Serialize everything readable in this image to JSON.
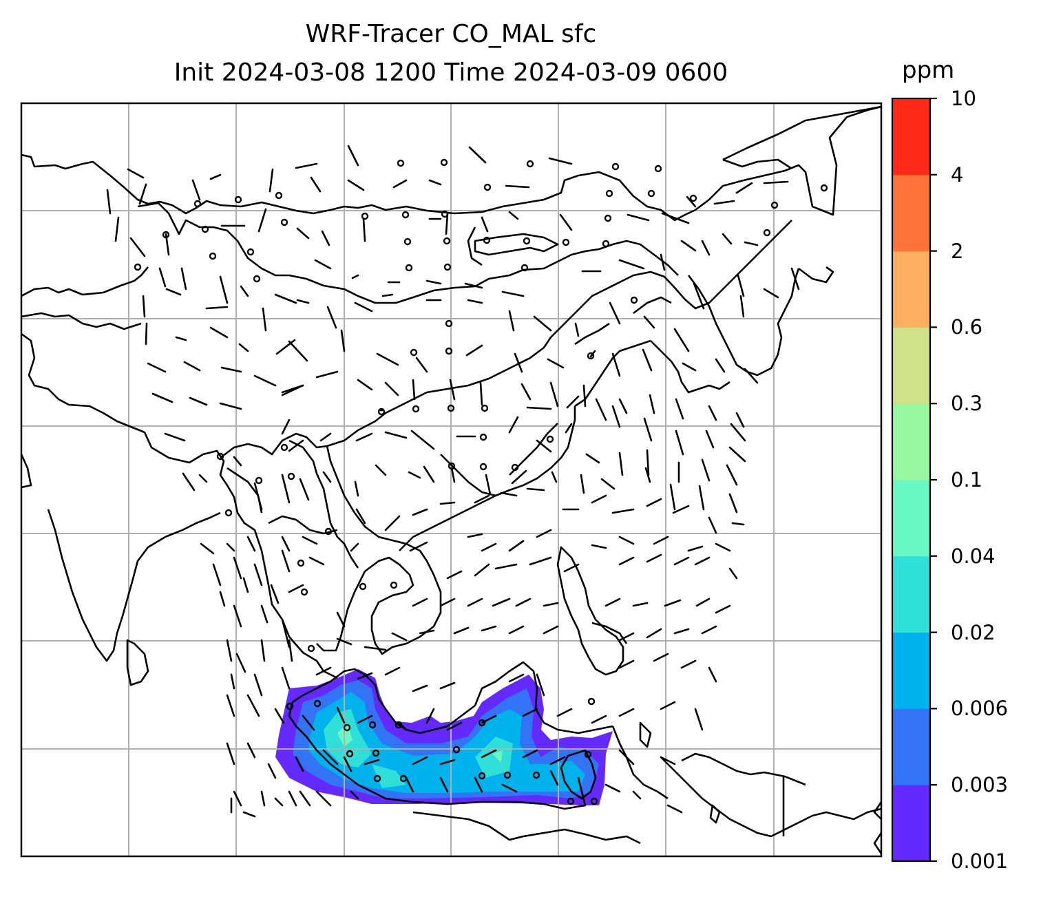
{
  "title": {
    "line1": "WRF-Tracer CO_MAL sfc",
    "line2": "Init 2024-03-08 1200 Time 2024-03-09 0600"
  },
  "map": {
    "field": "CO_MAL tracer concentration (surface)",
    "wind_barbs": true,
    "gridlines": true,
    "grid_color": "#b0b0b0",
    "coastline_color": "#000000",
    "tracer_region": "Malaysia / Borneo / Sumatra"
  },
  "colorbar": {
    "unit": "ppm",
    "ticks": [
      "0.001",
      "0.003",
      "0.006",
      "0.02",
      "0.04",
      "0.1",
      "0.3",
      "0.6",
      "2",
      "4",
      "10"
    ],
    "colors": [
      "#6429ff",
      "#3274f5",
      "#00b2ec",
      "#31dfd9",
      "#67f8c3",
      "#98f7a0",
      "#cfe189",
      "#fcae61",
      "#fe7339",
      "#fe2a17"
    ]
  }
}
